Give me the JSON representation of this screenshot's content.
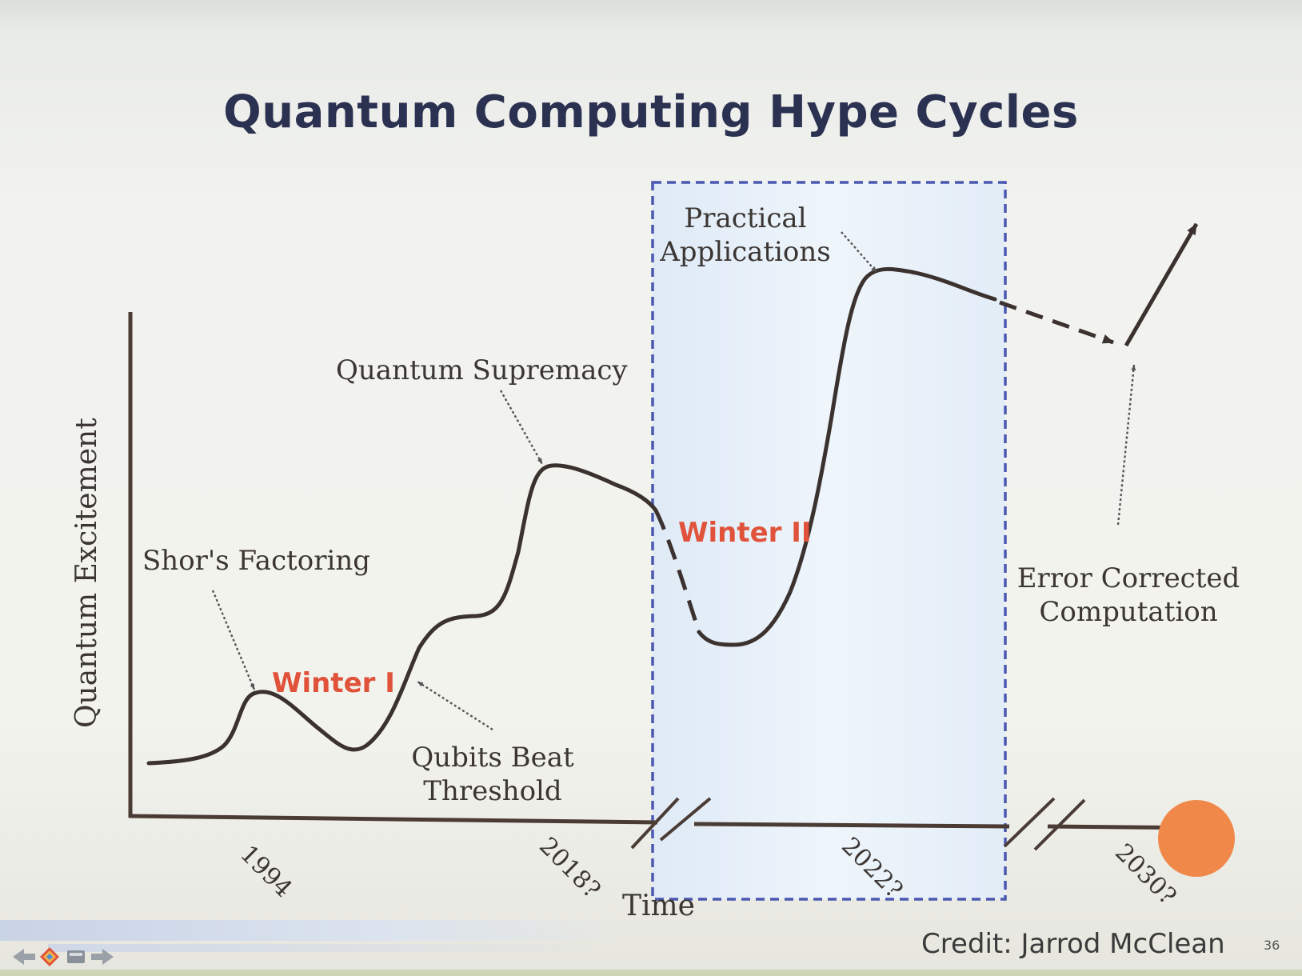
{
  "slide": {
    "title": "Quantum Computing Hype Cycles",
    "y_axis_label": "Quantum Excitement",
    "x_axis_label": "Time",
    "ticks": [
      "1994",
      "2018?",
      "2022?",
      "2030?"
    ],
    "annotations": {
      "shors_factoring": "Shor's Factoring",
      "quantum_supremacy": "Quantum Supremacy",
      "practical_applications_1": "Practical",
      "practical_applications_2": "Applications",
      "qubits_beat_threshold_1": "Qubits Beat",
      "qubits_beat_threshold_2": "Threshold",
      "error_corrected_1": "Error Corrected",
      "error_corrected_2": "Computation",
      "winter_1": "Winter I",
      "winter_2": "Winter II"
    },
    "credit": "Credit: Jarrod McClean",
    "page_number": "36"
  },
  "colors": {
    "title": "#2b3150",
    "curve": "#3b3230",
    "winter": "#e0533a",
    "highlight_box_border": "#4b58b0",
    "highlight_box_fill": "#e8f1f9",
    "dot": "#f0884a"
  },
  "icons": [
    "arrow-left-icon",
    "home-icon",
    "slide-icon",
    "arrow-right-icon"
  ]
}
